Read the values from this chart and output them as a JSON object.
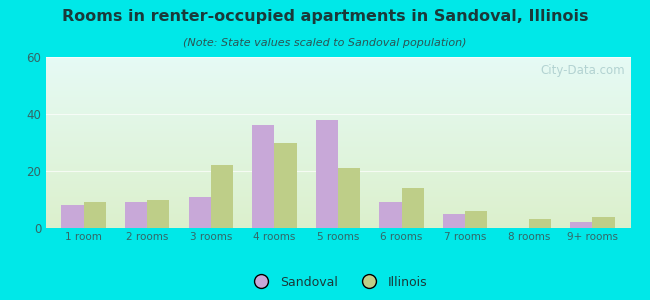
{
  "title": "Rooms in renter-occupied apartments in Sandoval, Illinois",
  "subtitle": "(Note: State values scaled to Sandoval population)",
  "categories": [
    "1 room",
    "2 rooms",
    "3 rooms",
    "4 rooms",
    "5 rooms",
    "6 rooms",
    "7 rooms",
    "8 rooms",
    "9+ rooms"
  ],
  "sandoval_values": [
    8,
    9,
    11,
    36,
    38,
    9,
    5,
    0,
    2
  ],
  "illinois_values": [
    9,
    10,
    22,
    30,
    21,
    14,
    6,
    3,
    4
  ],
  "sandoval_color": "#c8a8d8",
  "illinois_color": "#bece88",
  "ylim": [
    0,
    60
  ],
  "yticks": [
    0,
    20,
    40,
    60
  ],
  "bar_width": 0.35,
  "background_outer": "#00e8e8",
  "title_color": "#1a3a3a",
  "subtitle_color": "#2a5555",
  "tick_color": "#336666",
  "watermark": "City-Data.com",
  "watermark_color": "#aacccc"
}
